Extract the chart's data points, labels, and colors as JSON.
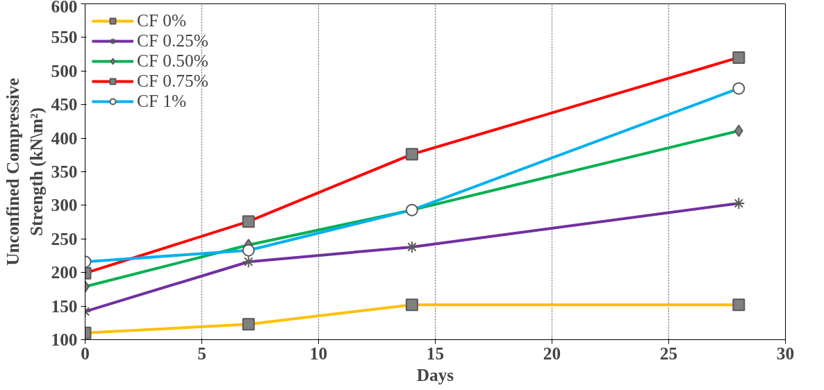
{
  "chart_data": {
    "type": "line",
    "xlabel": "Days",
    "ylabel": "Unconfined Compressive\nStrength (kN\\m²)",
    "xlim": [
      0,
      30
    ],
    "xticks": [
      0,
      5,
      10,
      15,
      20,
      25,
      30
    ],
    "ylim": [
      100,
      600
    ],
    "yticks": [
      100,
      150,
      200,
      250,
      300,
      350,
      400,
      450,
      500,
      550,
      600
    ],
    "grid": "x",
    "legend": "top left",
    "series": [
      {
        "name": "CF 0%",
        "color": "#ffc000",
        "marker": "square",
        "x": [
          0,
          7,
          14,
          28
        ],
        "values": [
          110,
          123,
          152,
          152
        ]
      },
      {
        "name": "CF 0.25%",
        "color": "#7030a0",
        "marker": "cross",
        "x": [
          0,
          7,
          14,
          28
        ],
        "values": [
          142,
          216,
          238,
          303
        ]
      },
      {
        "name": "CF 0.50%",
        "color": "#00b050",
        "marker": "diamond",
        "x": [
          0,
          7,
          14,
          28
        ],
        "values": [
          179,
          241,
          293,
          411
        ]
      },
      {
        "name": "CF 0.75%",
        "color": "#ff0000",
        "marker": "square",
        "x": [
          0,
          7,
          14,
          28
        ],
        "values": [
          199,
          276,
          376,
          520
        ]
      },
      {
        "name": "CF 1%",
        "color": "#00b0f0",
        "marker": "circle",
        "x": [
          0,
          7,
          14,
          28
        ],
        "values": [
          216,
          233,
          293,
          474
        ]
      }
    ]
  }
}
